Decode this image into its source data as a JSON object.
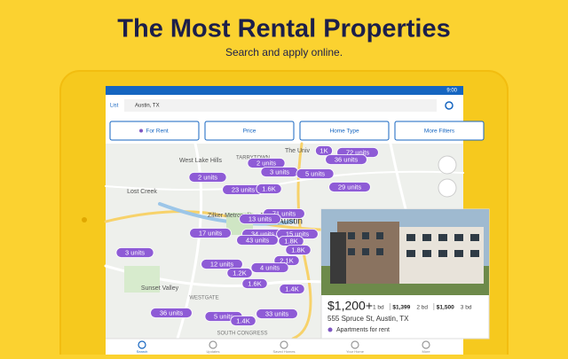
{
  "header": {
    "title": "The Most Rental Properties",
    "subtitle": "Search and apply online."
  },
  "status_bar": {
    "time": "9:00"
  },
  "search": {
    "list_button": "List",
    "query": "Austin, TX"
  },
  "filters": [
    "For Rent",
    "Price",
    "Home Type",
    "More Filters"
  ],
  "map": {
    "places": [
      "TARRYTOWN",
      "West Lake Hills",
      "Lost Creek",
      "Zilker Metropolitan Park",
      "Sunset Valley",
      "WESTGATE",
      "SOUTH CONGRESS",
      "Austin",
      "The Univ"
    ],
    "pins": [
      "1K",
      "72 units",
      "2 units",
      "36 units",
      "3 units",
      "5 units",
      "2 units",
      "23 units",
      "1.6K",
      "29 units",
      "71 units",
      "13 units",
      "17 units",
      "34 units",
      "15 units",
      "43 units",
      "1.8K",
      "3 units",
      "1.8K",
      "2.1K",
      "12 units",
      "4 units",
      "1.2K",
      "1.6K",
      "1.4K",
      "36 units",
      "5 units",
      "33 units",
      "1.4K"
    ]
  },
  "card": {
    "price": "$1,200+",
    "beds": [
      {
        "price": "",
        "label": "1 bd"
      },
      {
        "price": "$1,399",
        "label": "2 bd"
      },
      {
        "price": "$1,500",
        "label": "3 bd"
      }
    ],
    "address": "555 Spruce St, Austin, TX",
    "tag": "Apartments for rent"
  },
  "nav": [
    "Search",
    "Updates",
    "Saved Homes",
    "Your Home",
    "More"
  ]
}
